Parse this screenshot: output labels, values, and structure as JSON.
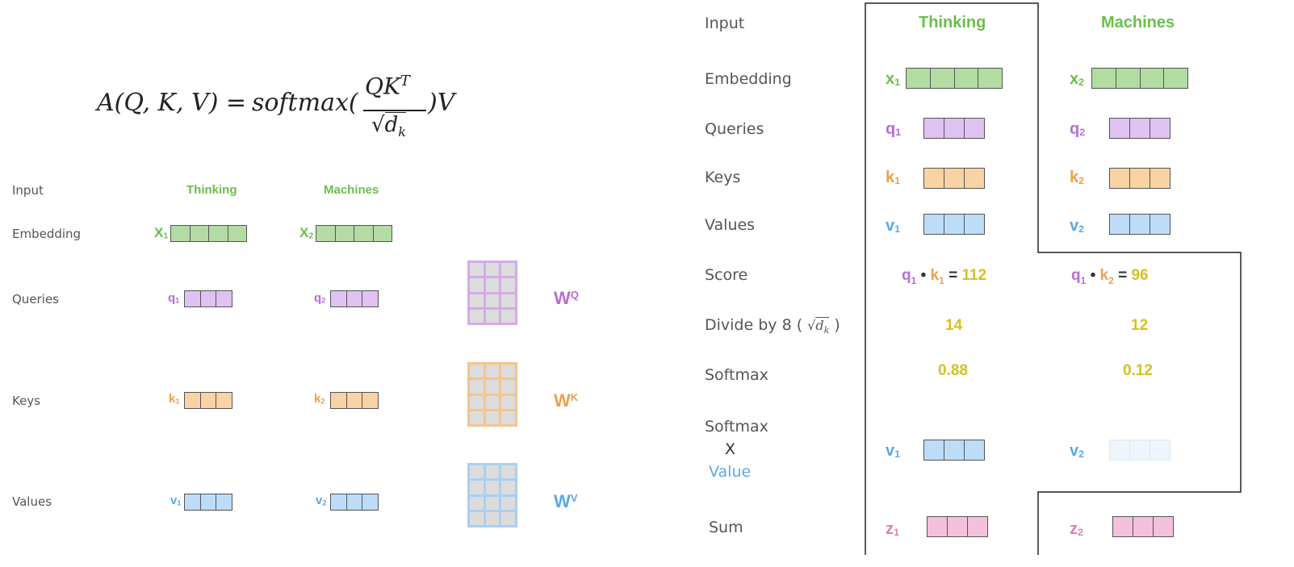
{
  "formula": {
    "lhs": "A(Q, K, V) = ",
    "fn": "softmax(",
    "numerator": "QK",
    "sup": "T",
    "denom": "d",
    "denom_sub": "k",
    "tail": ")V"
  },
  "left": {
    "rows": {
      "input": "Input",
      "embedding": "Embedding",
      "queries": "Queries",
      "keys": "Keys",
      "values": "Values"
    },
    "words": [
      "Thinking",
      "Machines"
    ],
    "vec_labels": {
      "x1": "X",
      "x1_sub": "1",
      "x2": "X",
      "x2_sub": "2",
      "q1": "q",
      "q1_sub": "1",
      "q2": "q",
      "q2_sub": "2",
      "k1": "k",
      "k1_sub": "1",
      "k2": "k",
      "k2_sub": "2",
      "v1": "v",
      "v1_sub": "1",
      "v2": "v",
      "v2_sub": "2"
    },
    "weights": {
      "wq": "W",
      "wq_sup": "Q",
      "wk": "W",
      "wk_sup": "K",
      "wv": "W",
      "wv_sup": "V"
    }
  },
  "right": {
    "rows": {
      "input": "Input",
      "embedding": "Embedding",
      "queries": "Queries",
      "keys": "Keys",
      "values": "Values",
      "score": "Score",
      "divide": "Divide by 8 (",
      "divide_sqrt": "d",
      "divide_sub": "k",
      "divide_close": ")",
      "softmax": "Softmax",
      "softmax2": "Softmax",
      "x": "X",
      "value": "Value",
      "sum": "Sum"
    },
    "words": [
      "Thinking",
      "Machines"
    ],
    "vec_labels": {
      "x1": "x",
      "x1_sub": "1",
      "x2": "x",
      "x2_sub": "2",
      "q1": "q",
      "q1_sub": "1",
      "q2": "q",
      "q2_sub": "2",
      "k1": "k",
      "k1_sub": "1",
      "k2": "k",
      "k2_sub": "2",
      "v1": "v",
      "v1_sub": "1",
      "v2": "v",
      "v2_sub": "2",
      "v1b": "v",
      "v1b_sub": "1",
      "v2b": "v",
      "v2b_sub": "2",
      "z1": "z",
      "z1_sub": "1",
      "z2": "z",
      "z2_sub": "2"
    },
    "score1": {
      "q": "q",
      "q_sub": "1",
      "dot": "•",
      "k": "k",
      "k_sub": "1",
      "eq": "=",
      "value": "112"
    },
    "score2": {
      "q": "q",
      "q_sub": "1",
      "dot": "•",
      "k": "k",
      "k_sub": "2",
      "eq": "=",
      "value": "96"
    },
    "divided": [
      "14",
      "12"
    ],
    "softmax": [
      "0.88",
      "0.12"
    ]
  },
  "colors": {
    "green": "#6abf4b",
    "purple": "#b86dd6",
    "orange": "#f0a04b",
    "blue": "#5aa9e6",
    "pink": "#e07db5",
    "yellow": "#d4c21e",
    "embed_fill": "#b3dca3",
    "query_fill": "#dfc2f1",
    "key_fill": "#f9d3a4",
    "value_fill": "#bcdcf8",
    "value_faded_fill": "#eef5fc",
    "sum_fill": "#f3c1db"
  }
}
